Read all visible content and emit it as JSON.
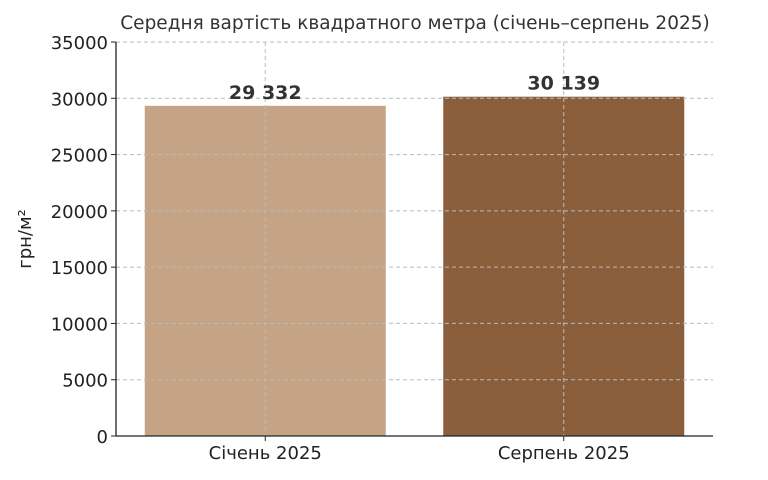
{
  "chart_data": {
    "type": "bar",
    "title": "Середня вартість квадратного метра (січень–серпень 2025)",
    "xlabel": "",
    "ylabel": "грн/м²",
    "categories": [
      "Січень 2025",
      "Серпень 2025"
    ],
    "values": [
      29332,
      30139
    ],
    "data_labels": [
      "29 332",
      "30 139"
    ],
    "colors": [
      "#C4A484",
      "#8B5E3C"
    ],
    "ylim": [
      0,
      35000
    ],
    "yticks": [
      0,
      5000,
      10000,
      15000,
      20000,
      25000,
      30000,
      35000
    ],
    "ytick_labels": [
      "0",
      "5000",
      "10000",
      "15000",
      "20000",
      "25000",
      "30000",
      "35000"
    ],
    "grid": true,
    "legend": "none"
  }
}
